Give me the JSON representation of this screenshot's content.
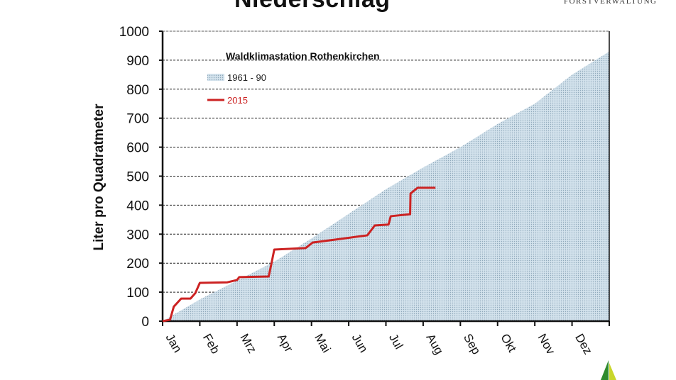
{
  "header": {
    "title": "Niederschlag",
    "organization": "FORSTVERWALTUNG"
  },
  "chart_data": {
    "type": "area",
    "title": "Niederschlag",
    "subtitle": "Waldklimastation Rothenkirchen",
    "xlabel": "",
    "ylabel": "Liter pro Quadratmeter",
    "ylim": [
      0,
      1000
    ],
    "yticks": [
      0,
      100,
      200,
      300,
      400,
      500,
      600,
      700,
      800,
      900,
      1000
    ],
    "xlim_months": [
      0,
      12
    ],
    "categories": [
      "Jan",
      "Feb",
      "Mrz",
      "Apr",
      "Mai",
      "Jun",
      "Jul",
      "Aug",
      "Sep",
      "Okt",
      "Nov",
      "Dez"
    ],
    "grid": "horizontal dashed",
    "legend_position": "top-left",
    "series": [
      {
        "name": "1961 - 90",
        "kind": "area",
        "color": "#c5d9e5",
        "x": [
          0,
          1,
          2,
          3,
          4,
          5,
          6,
          7,
          8,
          9,
          10,
          11,
          12
        ],
        "values": [
          0,
          75,
          140,
          205,
          285,
          370,
          455,
          530,
          600,
          680,
          750,
          850,
          930
        ]
      },
      {
        "name": "2015",
        "kind": "line",
        "color": "#cc2222",
        "x": [
          0,
          0.2,
          0.3,
          0.5,
          0.75,
          0.88,
          1.0,
          1.74,
          2.0,
          2.06,
          2.85,
          2.92,
          3.0,
          3.84,
          4.03,
          4.8,
          5.5,
          5.7,
          6.07,
          6.13,
          6.65,
          6.66,
          6.85,
          7.33
        ],
        "values": [
          0,
          5,
          50,
          78,
          78,
          97,
          132,
          134,
          142,
          152,
          154,
          196,
          247,
          252,
          271,
          284,
          296,
          330,
          333,
          362,
          369,
          440,
          460,
          460
        ]
      }
    ]
  }
}
